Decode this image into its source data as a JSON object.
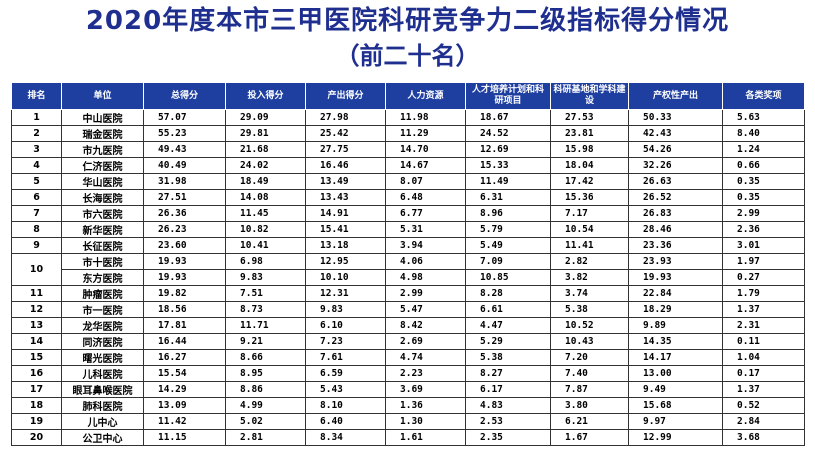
{
  "title": "2020年度本市三甲医院科研竞争力二级指标得分情况",
  "subtitle": "（前二十名）",
  "table": {
    "headers": [
      "排名",
      "单位",
      "总得分",
      "投入得分",
      "产出得分",
      "人力资源",
      "人才培养计划和科研项目",
      "科研基地和学科建设",
      "产权性产出",
      "各类奖项"
    ],
    "rows": [
      {
        "rank": "1",
        "unit": "中山医院",
        "values": [
          "57.07",
          "29.09",
          "27.98",
          "11.98",
          "18.67",
          "27.53",
          "50.33",
          "5.63"
        ]
      },
      {
        "rank": "2",
        "unit": "瑞金医院",
        "values": [
          "55.23",
          "29.81",
          "25.42",
          "11.29",
          "24.52",
          "23.81",
          "42.43",
          "8.40"
        ]
      },
      {
        "rank": "3",
        "unit": "市九医院",
        "values": [
          "49.43",
          "21.68",
          "27.75",
          "14.70",
          "12.69",
          "15.98",
          "54.26",
          "1.24"
        ]
      },
      {
        "rank": "4",
        "unit": "仁济医院",
        "values": [
          "40.49",
          "24.02",
          "16.46",
          "14.67",
          "15.33",
          "18.04",
          "32.26",
          "0.66"
        ]
      },
      {
        "rank": "5",
        "unit": "华山医院",
        "values": [
          "31.98",
          "18.49",
          "13.49",
          "8.07",
          "11.49",
          "17.42",
          "26.63",
          "0.35"
        ]
      },
      {
        "rank": "6",
        "unit": "长海医院",
        "values": [
          "27.51",
          "14.08",
          "13.43",
          "6.48",
          "6.31",
          "15.36",
          "26.52",
          "0.35"
        ]
      },
      {
        "rank": "7",
        "unit": "市六医院",
        "values": [
          "26.36",
          "11.45",
          "14.91",
          "6.77",
          "8.96",
          "7.17",
          "26.83",
          "2.99"
        ]
      },
      {
        "rank": "8",
        "unit": "新华医院",
        "values": [
          "26.23",
          "10.82",
          "15.41",
          "5.31",
          "5.79",
          "10.54",
          "28.46",
          "2.36"
        ]
      },
      {
        "rank": "9",
        "unit": "长征医院",
        "values": [
          "23.60",
          "10.41",
          "13.18",
          "3.94",
          "5.49",
          "11.41",
          "23.36",
          "3.01"
        ]
      },
      {
        "rank": "10",
        "unit": "市十医院",
        "values": [
          "19.93",
          "6.98",
          "12.95",
          "4.06",
          "7.09",
          "2.82",
          "23.93",
          "1.97"
        ]
      },
      {
        "rank": "",
        "unit": "东方医院",
        "values": [
          "19.93",
          "9.83",
          "10.10",
          "4.98",
          "10.85",
          "3.82",
          "19.93",
          "0.27"
        ]
      },
      {
        "rank": "11",
        "unit": "肿瘤医院",
        "values": [
          "19.82",
          "7.51",
          "12.31",
          "2.99",
          "8.28",
          "3.74",
          "22.84",
          "1.79"
        ]
      },
      {
        "rank": "12",
        "unit": "市一医院",
        "values": [
          "18.56",
          "8.73",
          "9.83",
          "5.47",
          "6.61",
          "5.38",
          "18.29",
          "1.37"
        ]
      },
      {
        "rank": "13",
        "unit": "龙华医院",
        "values": [
          "17.81",
          "11.71",
          "6.10",
          "8.42",
          "4.47",
          "10.52",
          "9.89",
          "2.31"
        ]
      },
      {
        "rank": "14",
        "unit": "同济医院",
        "values": [
          "16.44",
          "9.21",
          "7.23",
          "2.69",
          "5.29",
          "10.43",
          "14.35",
          "0.11"
        ]
      },
      {
        "rank": "15",
        "unit": "曙光医院",
        "values": [
          "16.27",
          "8.66",
          "7.61",
          "4.74",
          "5.38",
          "7.20",
          "14.17",
          "1.04"
        ]
      },
      {
        "rank": "16",
        "unit": "儿科医院",
        "values": [
          "15.54",
          "8.95",
          "6.59",
          "2.23",
          "8.27",
          "7.40",
          "13.00",
          "0.17"
        ]
      },
      {
        "rank": "17",
        "unit": "眼耳鼻喉医院",
        "values": [
          "14.29",
          "8.86",
          "5.43",
          "3.69",
          "6.17",
          "7.87",
          "9.49",
          "1.37"
        ]
      },
      {
        "rank": "18",
        "unit": "肺科医院",
        "values": [
          "13.09",
          "4.99",
          "8.10",
          "1.36",
          "4.83",
          "3.80",
          "15.68",
          "0.52"
        ]
      },
      {
        "rank": "19",
        "unit": "儿中心",
        "values": [
          "11.42",
          "5.02",
          "6.40",
          "1.30",
          "2.53",
          "6.21",
          "9.97",
          "2.84"
        ]
      },
      {
        "rank": "20",
        "unit": "公卫中心",
        "values": [
          "11.15",
          "2.81",
          "8.34",
          "1.61",
          "2.35",
          "1.67",
          "12.99",
          "3.68"
        ]
      }
    ]
  }
}
